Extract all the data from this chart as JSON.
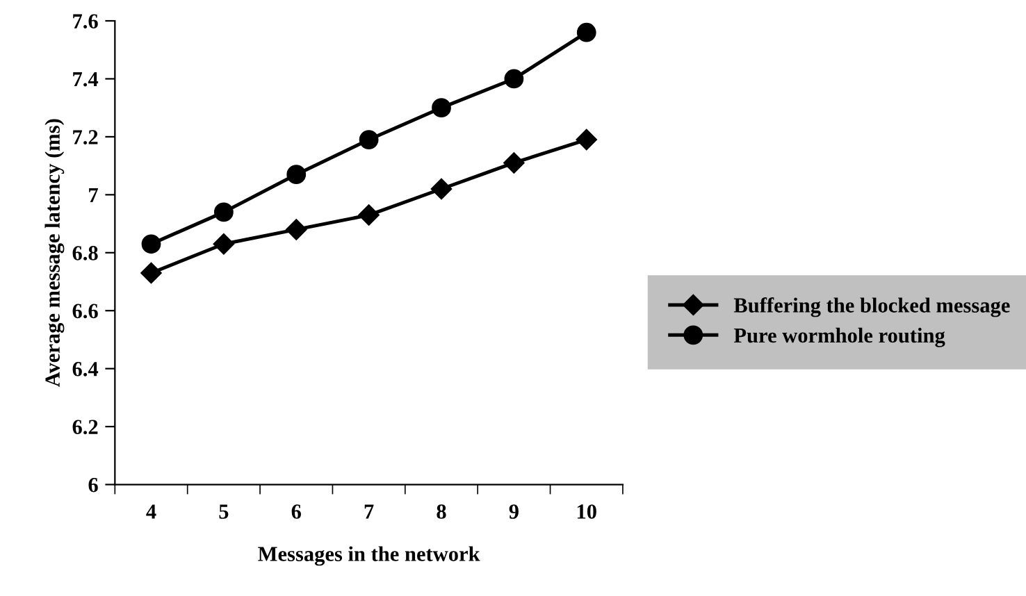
{
  "chart_data": {
    "type": "line",
    "xlabel": "Messages in the network",
    "ylabel": "Average message latency (ms)",
    "categories": [
      "4",
      "5",
      "6",
      "7",
      "8",
      "9",
      "10"
    ],
    "series": [
      {
        "name": "Buffering the blocked message",
        "color": "#000000",
        "marker": "diamond",
        "values": [
          6.73,
          6.83,
          6.88,
          6.93,
          7.02,
          7.11,
          7.19
        ]
      },
      {
        "name": "Pure wormhole routing",
        "color": "#000000",
        "marker": "circle",
        "values": [
          6.83,
          6.94,
          7.07,
          7.19,
          7.3,
          7.4,
          7.56
        ]
      }
    ],
    "ylim": [
      6,
      7.6
    ],
    "yticks": [
      6,
      6.2,
      6.4,
      6.6,
      6.8,
      7,
      7.2,
      7.4,
      7.6
    ],
    "grid": false,
    "legend": "right",
    "line_style": "solid"
  }
}
